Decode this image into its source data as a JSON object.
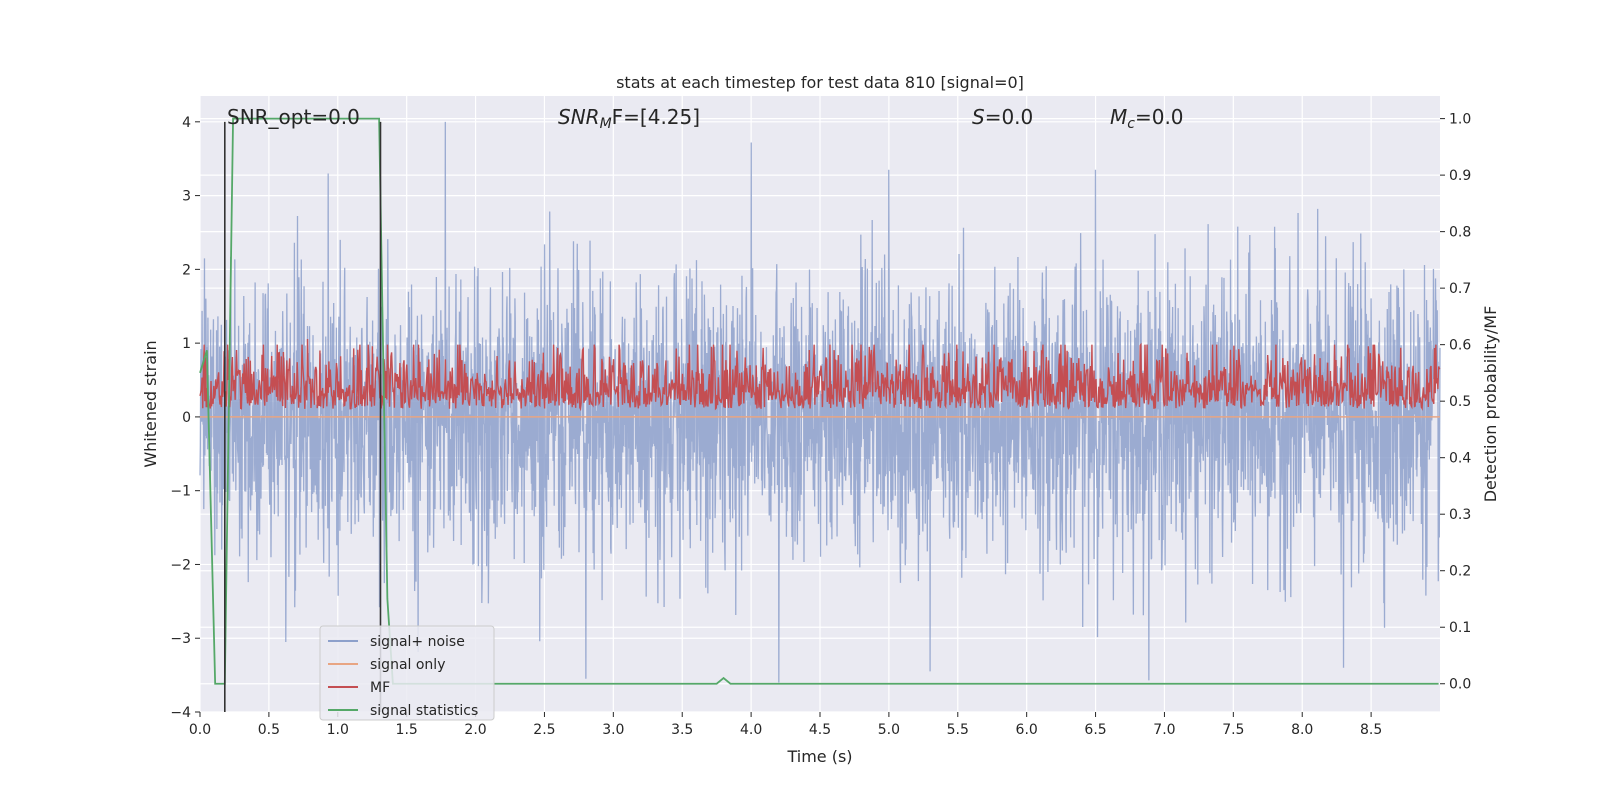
{
  "chart_data": {
    "type": "line",
    "title": "stats at each timestep for test data 810 [signal=0]",
    "xlabel": "Time (s)",
    "ylabel_left": "Whitened strain",
    "ylabel_right": "Detection probability/MF",
    "xlim": [
      0,
      9.0
    ],
    "ylim_left": [
      -4,
      4.35
    ],
    "ylim_right": [
      -0.05,
      1.04
    ],
    "x_ticks": [
      "0.0",
      "0.5",
      "1.0",
      "1.5",
      "2.0",
      "2.5",
      "3.0",
      "3.5",
      "4.0",
      "4.5",
      "5.0",
      "5.5",
      "6.0",
      "6.5",
      "7.0",
      "7.5",
      "8.0",
      "8.5"
    ],
    "x_tick_values": [
      0,
      0.5,
      1.0,
      1.5,
      2.0,
      2.5,
      3.0,
      3.5,
      4.0,
      4.5,
      5.0,
      5.5,
      6.0,
      6.5,
      7.0,
      7.5,
      8.0,
      8.5
    ],
    "y_left_ticks": [
      "−4",
      "−3",
      "−2",
      "−1",
      "0",
      "1",
      "2",
      "3",
      "4"
    ],
    "y_left_tick_values": [
      -4,
      -3,
      -2,
      -1,
      0,
      1,
      2,
      3,
      4
    ],
    "y_right_ticks": [
      "0.0",
      "0.1",
      "0.2",
      "0.3",
      "0.4",
      "0.5",
      "0.6",
      "0.7",
      "0.8",
      "0.9",
      "1.0"
    ],
    "y_right_tick_values": [
      0,
      0.1,
      0.2,
      0.3,
      0.4,
      0.5,
      0.6,
      0.7,
      0.8,
      0.9,
      1.0
    ],
    "grid": true,
    "legend_placement": "lower-left",
    "annotations": {
      "snr_opt": "SNR_opt=0.0",
      "snr_mf_base": "SNR",
      "snr_mf_sub": "M",
      "snr_mf_rest": "F=[4.25]",
      "s_base": "S",
      "s_rest": "=0.0",
      "mc_base": "M",
      "mc_sub": "c",
      "mc_rest": "=0.0"
    },
    "series": [
      {
        "name": "signal+ noise",
        "color": "#8da0cb",
        "axis": "left",
        "kind": "noise",
        "n_samples": 3600,
        "std": 0.95,
        "peak_values": [
          [
            1.78,
            4.0
          ],
          [
            4.0,
            3.72
          ],
          [
            4.2,
            -3.6
          ],
          [
            0.93,
            3.3
          ],
          [
            6.5,
            3.35
          ],
          [
            5.0,
            3.35
          ],
          [
            2.8,
            -3.55
          ],
          [
            5.3,
            -3.45
          ],
          [
            8.3,
            -3.4
          ]
        ]
      },
      {
        "name": "signal only",
        "color": "#e8a583",
        "axis": "left",
        "kind": "constant",
        "value": 0.0
      },
      {
        "name": "MF",
        "color": "#c44e52",
        "axis": "right",
        "kind": "noise_positive",
        "n_samples": 1800,
        "base": 0.5,
        "spread": 0.055,
        "peak_values": [
          [
            0.78,
            0.61
          ],
          [
            1.55,
            0.6
          ],
          [
            5.25,
            0.6
          ],
          [
            7.35,
            0.6
          ],
          [
            8.97,
            0.6
          ]
        ]
      },
      {
        "name": "signal statistics",
        "color": "#55a868",
        "axis": "right",
        "kind": "line",
        "x": [
          0,
          0.05,
          0.11,
          0.18,
          0.24,
          1.3,
          1.36,
          1.4,
          1.42,
          3.75,
          3.8,
          3.85,
          8.99
        ],
        "values": [
          0.55,
          0.59,
          -0.0,
          0.0,
          1.0,
          1.0,
          0.15,
          0.0,
          0.0,
          0.0,
          0.01,
          0.0,
          0.0
        ]
      }
    ],
    "vertical_lines": [
      {
        "x": 0.18,
        "color": "#333333"
      },
      {
        "x": 1.31,
        "color": "#333333"
      }
    ]
  }
}
